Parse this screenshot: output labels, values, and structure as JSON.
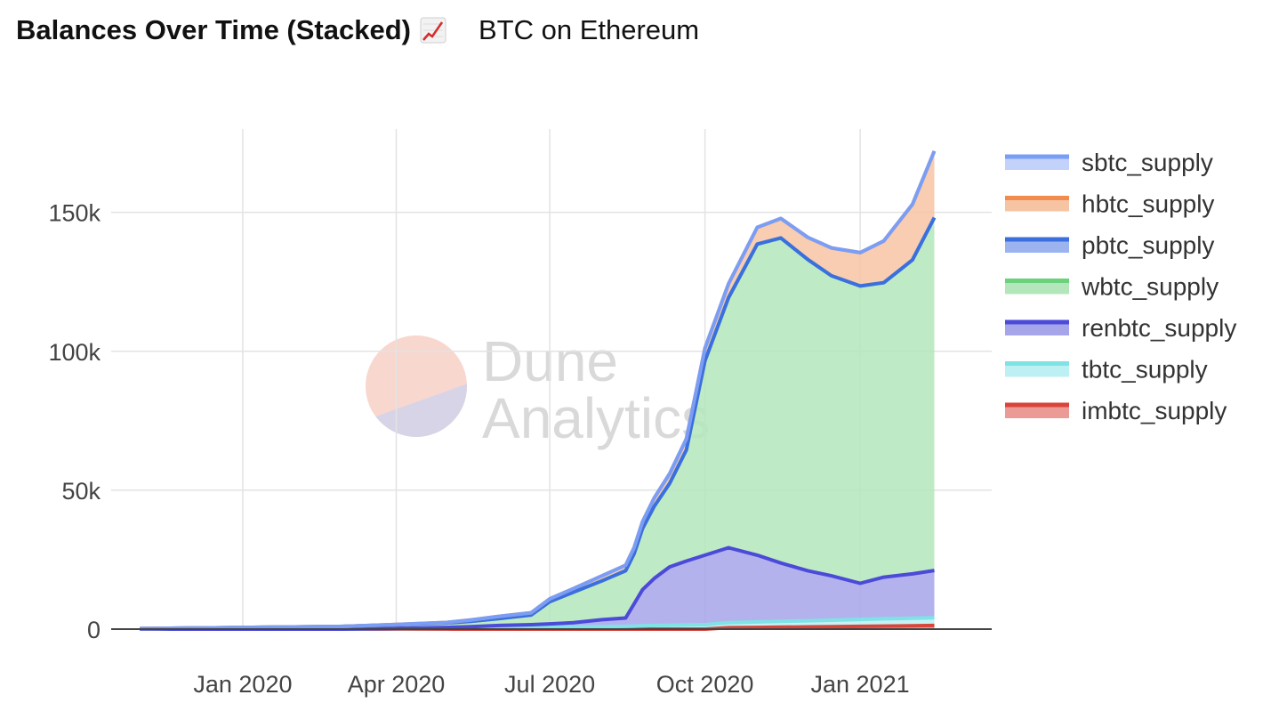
{
  "header": {
    "title": "Balances Over Time (Stacked)",
    "emoji_icon": "chart-increasing-icon",
    "subtitle": "BTC on Ethereum"
  },
  "watermark": {
    "line1": "Dune",
    "line2": "Analytics"
  },
  "chart_data": {
    "type": "area",
    "stacked": true,
    "ylim": [
      0,
      180000
    ],
    "y_ticks": [
      0,
      50000,
      100000,
      150000
    ],
    "y_tick_labels": [
      "0",
      "50k",
      "100k",
      "150k"
    ],
    "x_tick_labels": [
      "Jan 2020",
      "Apr 2020",
      "Jul 2020",
      "Oct 2020",
      "Jan 2021"
    ],
    "x_ticks": [
      "2020-01-01",
      "2020-04-01",
      "2020-07-01",
      "2020-10-01",
      "2021-01-01"
    ],
    "xlim": [
      "2019-10-15",
      "2021-03-20"
    ],
    "grid": true,
    "legend_position": "right",
    "x": [
      "2019-11-01",
      "2019-12-01",
      "2020-01-01",
      "2020-02-01",
      "2020-03-01",
      "2020-04-01",
      "2020-05-01",
      "2020-05-15",
      "2020-06-01",
      "2020-06-20",
      "2020-07-01",
      "2020-07-15",
      "2020-08-01",
      "2020-08-15",
      "2020-08-20",
      "2020-08-25",
      "2020-09-01",
      "2020-09-10",
      "2020-09-20",
      "2020-10-01",
      "2020-10-15",
      "2020-11-01",
      "2020-11-15",
      "2020-12-01",
      "2020-12-15",
      "2021-01-01",
      "2021-01-15",
      "2021-02-01",
      "2021-02-14"
    ],
    "series": [
      {
        "name": "sbtc_supply",
        "color": "#7a9ef5",
        "fill": "#c3d2fa",
        "values": [
          0,
          0,
          0,
          0,
          0,
          0,
          0,
          0,
          0,
          0,
          0,
          0,
          0,
          0,
          0,
          0,
          0,
          0,
          0,
          0,
          0,
          0,
          0,
          0,
          0,
          0,
          0,
          0,
          0
        ]
      },
      {
        "name": "hbtc_supply",
        "color": "#f08c4e",
        "fill": "#f7c4a3",
        "values": [
          0,
          0,
          0,
          0,
          0,
          100,
          200,
          500,
          800,
          800,
          1000,
          1300,
          1800,
          2000,
          2200,
          2500,
          3000,
          3500,
          4000,
          4500,
          5000,
          6000,
          7000,
          8000,
          10000,
          12000,
          15000,
          20000,
          24000
        ]
      },
      {
        "name": "pbtc_supply",
        "color": "#3b6fe0",
        "fill": "#9bb4f0",
        "values": [
          0,
          0,
          0,
          0,
          0,
          0,
          0,
          0,
          0,
          0,
          0,
          0,
          0,
          0,
          0,
          0,
          0,
          0,
          0,
          0,
          0,
          0,
          0,
          0,
          0,
          0,
          0,
          0,
          0
        ]
      },
      {
        "name": "wbtc_supply",
        "color": "#6cd17c",
        "fill": "#b4e6bc",
        "values": [
          200,
          400,
          600,
          800,
          1000,
          1300,
          1600,
          1900,
          2500,
          3500,
          8000,
          11000,
          14000,
          17000,
          18000,
          22000,
          26000,
          30000,
          40000,
          70000,
          90000,
          112000,
          117000,
          112000,
          108000,
          107000,
          106000,
          113000,
          127000
        ]
      },
      {
        "name": "renbtc_supply",
        "color": "#4c4ad8",
        "fill": "#a6a5ea",
        "values": [
          0,
          0,
          0,
          0,
          0,
          100,
          300,
          500,
          800,
          1000,
          1200,
          1500,
          2500,
          3000,
          8000,
          13000,
          17000,
          21000,
          23000,
          25000,
          27000,
          24000,
          21000,
          18000,
          16000,
          13000,
          15000,
          16000,
          17000
        ]
      },
      {
        "name": "tbtc_supply",
        "color": "#7fe3e6",
        "fill": "#bdf0f2",
        "values": [
          0,
          0,
          0,
          0,
          0,
          200,
          300,
          400,
          500,
          600,
          700,
          800,
          900,
          1000,
          1100,
          1200,
          1300,
          1400,
          1500,
          1600,
          1800,
          2000,
          2100,
          2200,
          2300,
          2500,
          2600,
          2700,
          2800
        ]
      },
      {
        "name": "imbtc_supply",
        "color": "#d9443b",
        "fill": "#ec9a95",
        "values": [
          0,
          0,
          0,
          0,
          0,
          0,
          0,
          0,
          0,
          0,
          0,
          0,
          0,
          0,
          0,
          0,
          0,
          0,
          0,
          0,
          500,
          600,
          700,
          800,
          900,
          1000,
          1100,
          1200,
          1300
        ]
      }
    ]
  }
}
